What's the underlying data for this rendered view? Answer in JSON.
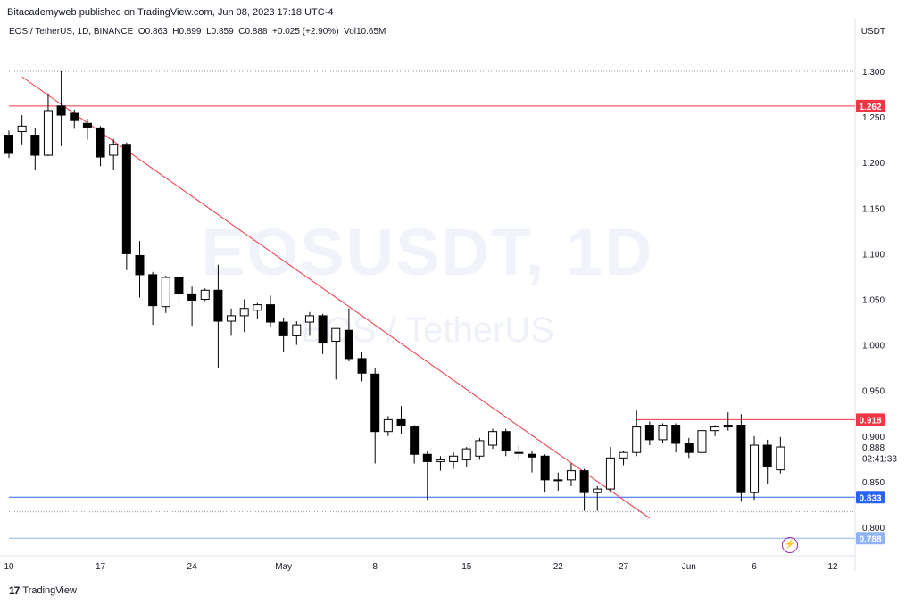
{
  "attribution": "Bitacademyweb published on TradingView.com, Jun 08, 2023 17:18 UTC-4",
  "legend": {
    "symbol": "EOS / TetherUS, 1D, BINANCE",
    "open": "O0.863",
    "high": "H0.899",
    "low": "L0.859",
    "close": "C0.888",
    "change": "+0.025 (+2.90%)",
    "volume": "Vol10.65M"
  },
  "currency": "USDT",
  "watermark": {
    "symbol": "EOSUSDT, 1D",
    "description": "EOS / TetherUS"
  },
  "footer": {
    "logo": "17",
    "brand": "TradingView"
  },
  "flash_icon": "lightning-icon",
  "colors": {
    "up": "#ffffff",
    "down": "#000000",
    "trendline": "#f23645",
    "support": "#2962ff",
    "resistance": "#f23645"
  },
  "chart_data": {
    "type": "candlestick",
    "y_ticks": [
      "1.300",
      "1.250",
      "1.200",
      "1.150",
      "1.100",
      "1.050",
      "1.000",
      "0.950",
      "0.900",
      "0.850",
      "0.800"
    ],
    "x_ticks": [
      {
        "label": "10",
        "idx": 0
      },
      {
        "label": "17",
        "idx": 7
      },
      {
        "label": "24",
        "idx": 14
      },
      {
        "label": "May",
        "idx": 21
      },
      {
        "label": "8",
        "idx": 28
      },
      {
        "label": "15",
        "idx": 35
      },
      {
        "label": "22",
        "idx": 42
      },
      {
        "label": "27",
        "idx": 47
      },
      {
        "label": "Jun",
        "idx": 52
      },
      {
        "label": "6",
        "idx": 57
      },
      {
        "label": "12",
        "idx": 63
      }
    ],
    "price_labels": [
      {
        "value": 1.262,
        "label": "1.262",
        "color": "#f23645"
      },
      {
        "value": 0.918,
        "label": "0.918",
        "color": "#f23645"
      },
      {
        "value": 0.833,
        "label": "0.833",
        "color": "#2962ff"
      },
      {
        "value": 0.788,
        "label": "0.788",
        "color": "#90b3f5"
      }
    ],
    "axis_texts": [
      {
        "value": 0.888,
        "label": "0.888"
      },
      {
        "value": 0.876,
        "label": "02:41:33"
      }
    ],
    "hlines": [
      {
        "value": 1.262,
        "color": "#f23645",
        "from": -1,
        "to": 64
      },
      {
        "value": 0.833,
        "color": "#2962ff",
        "from": -1,
        "to": 64
      },
      {
        "value": 0.918,
        "color": "#f23645",
        "from": 48,
        "to": 64
      },
      {
        "value": 0.788,
        "color": "#90b3f5",
        "from": -1,
        "to": 64
      }
    ],
    "dotted_lines": [
      1.3,
      0.817
    ],
    "trendline": [
      {
        "idx": 1,
        "value": 1.294
      },
      {
        "idx": 49,
        "value": 0.81
      }
    ],
    "candles": [
      [
        1.23,
        1.235,
        1.205,
        1.21
      ],
      [
        1.234,
        1.252,
        1.22,
        1.24
      ],
      [
        1.23,
        1.238,
        1.192,
        1.208
      ],
      [
        1.208,
        1.276,
        1.207,
        1.257
      ],
      [
        1.262,
        1.3,
        1.218,
        1.252
      ],
      [
        1.254,
        1.258,
        1.237,
        1.246
      ],
      [
        1.243,
        1.248,
        1.225,
        1.238
      ],
      [
        1.238,
        1.24,
        1.196,
        1.206
      ],
      [
        1.208,
        1.226,
        1.192,
        1.22
      ],
      [
        1.22,
        1.222,
        1.082,
        1.1
      ],
      [
        1.098,
        1.114,
        1.052,
        1.077
      ],
      [
        1.077,
        1.08,
        1.022,
        1.043
      ],
      [
        1.042,
        1.076,
        1.035,
        1.074
      ],
      [
        1.074,
        1.076,
        1.048,
        1.056
      ],
      [
        1.056,
        1.064,
        1.021,
        1.049
      ],
      [
        1.05,
        1.062,
        1.048,
        1.06
      ],
      [
        1.06,
        1.088,
        0.975,
        1.026
      ],
      [
        1.026,
        1.04,
        1.01,
        1.032
      ],
      [
        1.032,
        1.05,
        1.014,
        1.04
      ],
      [
        1.038,
        1.046,
        1.028,
        1.044
      ],
      [
        1.044,
        1.054,
        1.02,
        1.025
      ],
      [
        1.025,
        1.03,
        0.992,
        1.01
      ],
      [
        1.01,
        1.026,
        1.0,
        1.022
      ],
      [
        1.025,
        1.036,
        1.01,
        1.032
      ],
      [
        1.032,
        1.034,
        0.99,
        1.002
      ],
      [
        1.004,
        1.018,
        0.962,
        1.018
      ],
      [
        1.016,
        1.04,
        0.982,
        0.985
      ],
      [
        0.985,
        0.992,
        0.96,
        0.969
      ],
      [
        0.968,
        0.975,
        0.87,
        0.905
      ],
      [
        0.905,
        0.922,
        0.9,
        0.918
      ],
      [
        0.918,
        0.933,
        0.902,
        0.912
      ],
      [
        0.91,
        0.912,
        0.87,
        0.88
      ],
      [
        0.88,
        0.884,
        0.83,
        0.872
      ],
      [
        0.872,
        0.878,
        0.862,
        0.874
      ],
      [
        0.872,
        0.882,
        0.864,
        0.878
      ],
      [
        0.874,
        0.888,
        0.866,
        0.886
      ],
      [
        0.878,
        0.898,
        0.874,
        0.895
      ],
      [
        0.89,
        0.908,
        0.886,
        0.905
      ],
      [
        0.905,
        0.908,
        0.878,
        0.884
      ],
      [
        0.882,
        0.89,
        0.874,
        0.882
      ],
      [
        0.88,
        0.884,
        0.86,
        0.877
      ],
      [
        0.878,
        0.88,
        0.838,
        0.852
      ],
      [
        0.852,
        0.86,
        0.84,
        0.852
      ],
      [
        0.852,
        0.87,
        0.845,
        0.862
      ],
      [
        0.862,
        0.864,
        0.818,
        0.838
      ],
      [
        0.838,
        0.845,
        0.818,
        0.842
      ],
      [
        0.842,
        0.888,
        0.838,
        0.876
      ],
      [
        0.876,
        0.884,
        0.868,
        0.882
      ],
      [
        0.882,
        0.928,
        0.878,
        0.91
      ],
      [
        0.912,
        0.916,
        0.89,
        0.896
      ],
      [
        0.896,
        0.914,
        0.892,
        0.912
      ],
      [
        0.912,
        0.914,
        0.882,
        0.892
      ],
      [
        0.892,
        0.898,
        0.876,
        0.882
      ],
      [
        0.882,
        0.91,
        0.878,
        0.906
      ],
      [
        0.906,
        0.912,
        0.9,
        0.91
      ],
      [
        0.91,
        0.926,
        0.906,
        0.912
      ],
      [
        0.912,
        0.924,
        0.828,
        0.838
      ],
      [
        0.838,
        0.9,
        0.83,
        0.89
      ],
      [
        0.89,
        0.896,
        0.848,
        0.866
      ],
      [
        0.863,
        0.899,
        0.859,
        0.888
      ]
    ]
  }
}
